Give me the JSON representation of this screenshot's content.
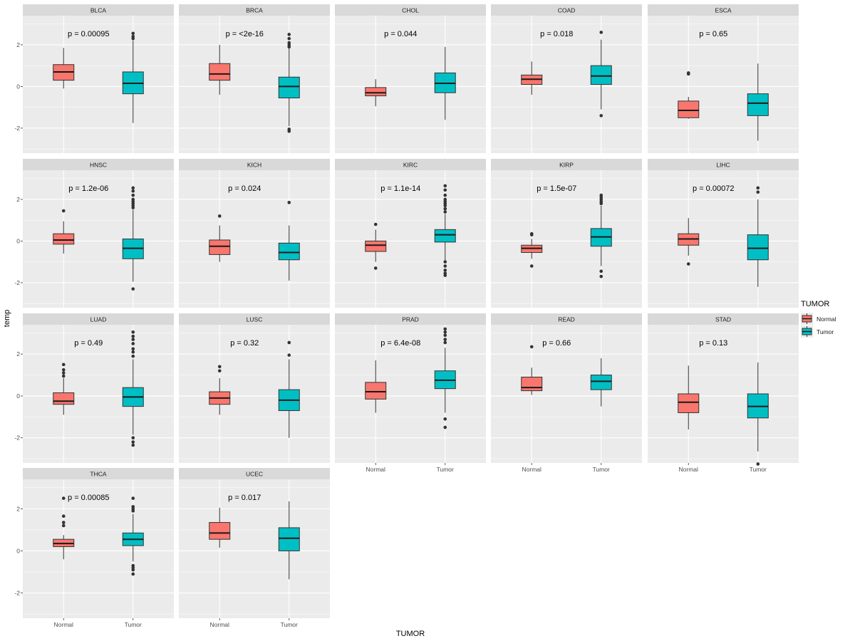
{
  "chart_data": {
    "type": "boxplot",
    "facet_layout": "wrap-5-columns",
    "xlabel": "TUMOR",
    "ylabel": "temp",
    "ylim": [
      -3.2,
      3.4
    ],
    "yticks": [
      -2,
      0,
      2
    ],
    "ytick_labels": [
      "-2",
      "0",
      "2"
    ],
    "categories": [
      "Normal",
      "Tumor"
    ],
    "colors": {
      "Normal": "#F8766D",
      "Tumor": "#00BFC4",
      "panel_bg": "#EBEBEB",
      "strip_bg": "#D9D9D9",
      "grid": "#FFFFFF",
      "outlier": "#333333"
    },
    "legend": {
      "title": "TUMOR",
      "entries": [
        "Normal",
        "Tumor"
      ],
      "position": "right"
    },
    "panels": [
      {
        "name": "BLCA",
        "p_label": "p = 0.00095",
        "normal": {
          "lo": -0.1,
          "q1": 0.3,
          "med": 0.7,
          "q3": 1.05,
          "hi": 1.85,
          "outliers": []
        },
        "tumor": {
          "lo": -1.75,
          "q1": -0.35,
          "med": 0.15,
          "q3": 0.7,
          "hi": 2.2,
          "outliers": [
            2.3,
            2.4,
            2.55
          ]
        }
      },
      {
        "name": "BRCA",
        "p_label": "p = <2e-16",
        "normal": {
          "lo": -0.4,
          "q1": 0.3,
          "med": 0.6,
          "q3": 1.1,
          "hi": 2.0,
          "outliers": []
        },
        "tumor": {
          "lo": -1.9,
          "q1": -0.55,
          "med": 0.0,
          "q3": 0.45,
          "hi": 1.85,
          "outliers": [
            1.9,
            2.0,
            2.1,
            2.3,
            2.5,
            -2.05,
            -2.15
          ]
        }
      },
      {
        "name": "CHOL",
        "p_label": "p = 0.044",
        "normal": {
          "lo": -0.95,
          "q1": -0.45,
          "med": -0.3,
          "q3": -0.05,
          "hi": 0.35,
          "outliers": []
        },
        "tumor": {
          "lo": -1.6,
          "q1": -0.3,
          "med": 0.15,
          "q3": 0.65,
          "hi": 1.9,
          "outliers": []
        }
      },
      {
        "name": "COAD",
        "p_label": "p = 0.018",
        "normal": {
          "lo": -0.4,
          "q1": 0.1,
          "med": 0.35,
          "q3": 0.55,
          "hi": 1.2,
          "outliers": []
        },
        "tumor": {
          "lo": -1.1,
          "q1": 0.1,
          "med": 0.5,
          "q3": 1.0,
          "hi": 2.25,
          "outliers": [
            2.6,
            -1.4
          ]
        }
      },
      {
        "name": "ESCA",
        "p_label": "p = 0.65",
        "normal": {
          "lo": -1.55,
          "q1": -1.5,
          "med": -1.15,
          "q3": -0.7,
          "hi": -0.5,
          "outliers": [
            0.6,
            0.65
          ]
        },
        "tumor": {
          "lo": -2.6,
          "q1": -1.4,
          "med": -0.8,
          "q3": -0.35,
          "hi": 1.1,
          "outliers": []
        }
      },
      {
        "name": "HNSC",
        "p_label": "p = 1.2e-06",
        "normal": {
          "lo": -0.6,
          "q1": -0.15,
          "med": 0.05,
          "q3": 0.35,
          "hi": 0.95,
          "outliers": [
            1.45
          ]
        },
        "tumor": {
          "lo": -1.95,
          "q1": -0.85,
          "med": -0.35,
          "q3": 0.1,
          "hi": 1.5,
          "outliers": [
            1.6,
            1.7,
            1.8,
            1.9,
            2.0,
            2.2,
            2.4,
            2.55,
            -2.3
          ]
        }
      },
      {
        "name": "KICH",
        "p_label": "p = 0.024",
        "normal": {
          "lo": -1.0,
          "q1": -0.65,
          "med": -0.25,
          "q3": 0.05,
          "hi": 0.75,
          "outliers": [
            1.2
          ]
        },
        "tumor": {
          "lo": -1.9,
          "q1": -0.9,
          "med": -0.55,
          "q3": -0.1,
          "hi": 0.75,
          "outliers": [
            1.85
          ]
        }
      },
      {
        "name": "KIRC",
        "p_label": "p = 1.1e-14",
        "normal": {
          "lo": -1.0,
          "q1": -0.5,
          "med": -0.2,
          "q3": 0.0,
          "hi": 0.55,
          "outliers": [
            0.8,
            -1.3
          ]
        },
        "tumor": {
          "lo": -0.95,
          "q1": -0.05,
          "med": 0.3,
          "q3": 0.55,
          "hi": 1.3,
          "outliers": [
            1.4,
            1.55,
            1.7,
            1.8,
            1.9,
            2.0,
            2.2,
            2.45,
            2.65,
            -1.0,
            -1.2,
            -1.4,
            -1.55,
            -1.65
          ]
        }
      },
      {
        "name": "KIRP",
        "p_label": "p = 1.5e-07",
        "normal": {
          "lo": -0.85,
          "q1": -0.55,
          "med": -0.35,
          "q3": -0.2,
          "hi": 0.1,
          "outliers": [
            0.3,
            0.35,
            -1.2
          ]
        },
        "tumor": {
          "lo": -1.2,
          "q1": -0.25,
          "med": 0.2,
          "q3": 0.6,
          "hi": 1.7,
          "outliers": [
            1.8,
            1.9,
            2.0,
            2.1,
            2.2,
            -1.45,
            -1.7
          ]
        }
      },
      {
        "name": "LIHC",
        "p_label": "p = 0.00072",
        "normal": {
          "lo": -0.7,
          "q1": -0.2,
          "med": 0.1,
          "q3": 0.35,
          "hi": 1.1,
          "outliers": [
            -1.1
          ]
        },
        "tumor": {
          "lo": -2.2,
          "q1": -0.9,
          "med": -0.35,
          "q3": 0.3,
          "hi": 2.0,
          "outliers": [
            2.35,
            2.55
          ]
        }
      },
      {
        "name": "LUAD",
        "p_label": "p = 0.49",
        "normal": {
          "lo": -0.9,
          "q1": -0.4,
          "med": -0.25,
          "q3": 0.15,
          "hi": 0.85,
          "outliers": [
            0.95,
            1.1,
            1.25,
            1.5
          ]
        },
        "tumor": {
          "lo": -1.85,
          "q1": -0.5,
          "med": -0.05,
          "q3": 0.4,
          "hi": 1.75,
          "outliers": [
            1.9,
            2.1,
            2.25,
            2.5,
            2.7,
            2.85,
            3.05,
            -2.0,
            -2.2,
            -2.35
          ]
        }
      },
      {
        "name": "LUSC",
        "p_label": "p = 0.32",
        "normal": {
          "lo": -0.9,
          "q1": -0.4,
          "med": -0.1,
          "q3": 0.2,
          "hi": 0.85,
          "outliers": [
            1.2,
            1.4
          ]
        },
        "tumor": {
          "lo": -2.0,
          "q1": -0.7,
          "med": -0.2,
          "q3": 0.3,
          "hi": 1.75,
          "outliers": [
            1.95,
            2.55
          ]
        }
      },
      {
        "name": "PRAD",
        "p_label": "p = 6.4e-08",
        "normal": {
          "lo": -0.8,
          "q1": -0.15,
          "med": 0.2,
          "q3": 0.65,
          "hi": 1.7,
          "outliers": []
        },
        "tumor": {
          "lo": -0.8,
          "q1": 0.35,
          "med": 0.75,
          "q3": 1.2,
          "hi": 2.3,
          "outliers": [
            2.55,
            2.7,
            2.9,
            3.05,
            3.2,
            -1.1,
            -1.5
          ]
        }
      },
      {
        "name": "READ",
        "p_label": "p = 0.66",
        "normal": {
          "lo": 0.05,
          "q1": 0.25,
          "med": 0.4,
          "q3": 0.9,
          "hi": 1.35,
          "outliers": [
            2.35
          ]
        },
        "tumor": {
          "lo": -0.5,
          "q1": 0.3,
          "med": 0.7,
          "q3": 1.0,
          "hi": 1.8,
          "outliers": []
        }
      },
      {
        "name": "STAD",
        "p_label": "p = 0.13",
        "normal": {
          "lo": -1.6,
          "q1": -0.8,
          "med": -0.3,
          "q3": 0.1,
          "hi": 1.45,
          "outliers": []
        },
        "tumor": {
          "lo": -2.65,
          "q1": -1.05,
          "med": -0.5,
          "q3": 0.1,
          "hi": 1.6,
          "outliers": [
            -3.25
          ]
        }
      },
      {
        "name": "THCA",
        "p_label": "p = 0.00085",
        "normal": {
          "lo": -0.4,
          "q1": 0.2,
          "med": 0.35,
          "q3": 0.55,
          "hi": 0.75,
          "outliers": [
            1.2,
            1.35,
            1.65,
            2.5
          ]
        },
        "tumor": {
          "lo": -0.5,
          "q1": 0.25,
          "med": 0.55,
          "q3": 0.85,
          "hi": 1.75,
          "outliers": [
            1.9,
            2.0,
            2.1,
            2.5,
            -0.7,
            -0.8,
            -0.9,
            -1.1
          ]
        }
      },
      {
        "name": "UCEC",
        "p_label": "p = 0.017",
        "normal": {
          "lo": 0.15,
          "q1": 0.55,
          "med": 0.85,
          "q3": 1.35,
          "hi": 2.05,
          "outliers": []
        },
        "tumor": {
          "lo": -1.35,
          "q1": 0.0,
          "med": 0.6,
          "q3": 1.1,
          "hi": 2.35,
          "outliers": []
        }
      }
    ]
  }
}
